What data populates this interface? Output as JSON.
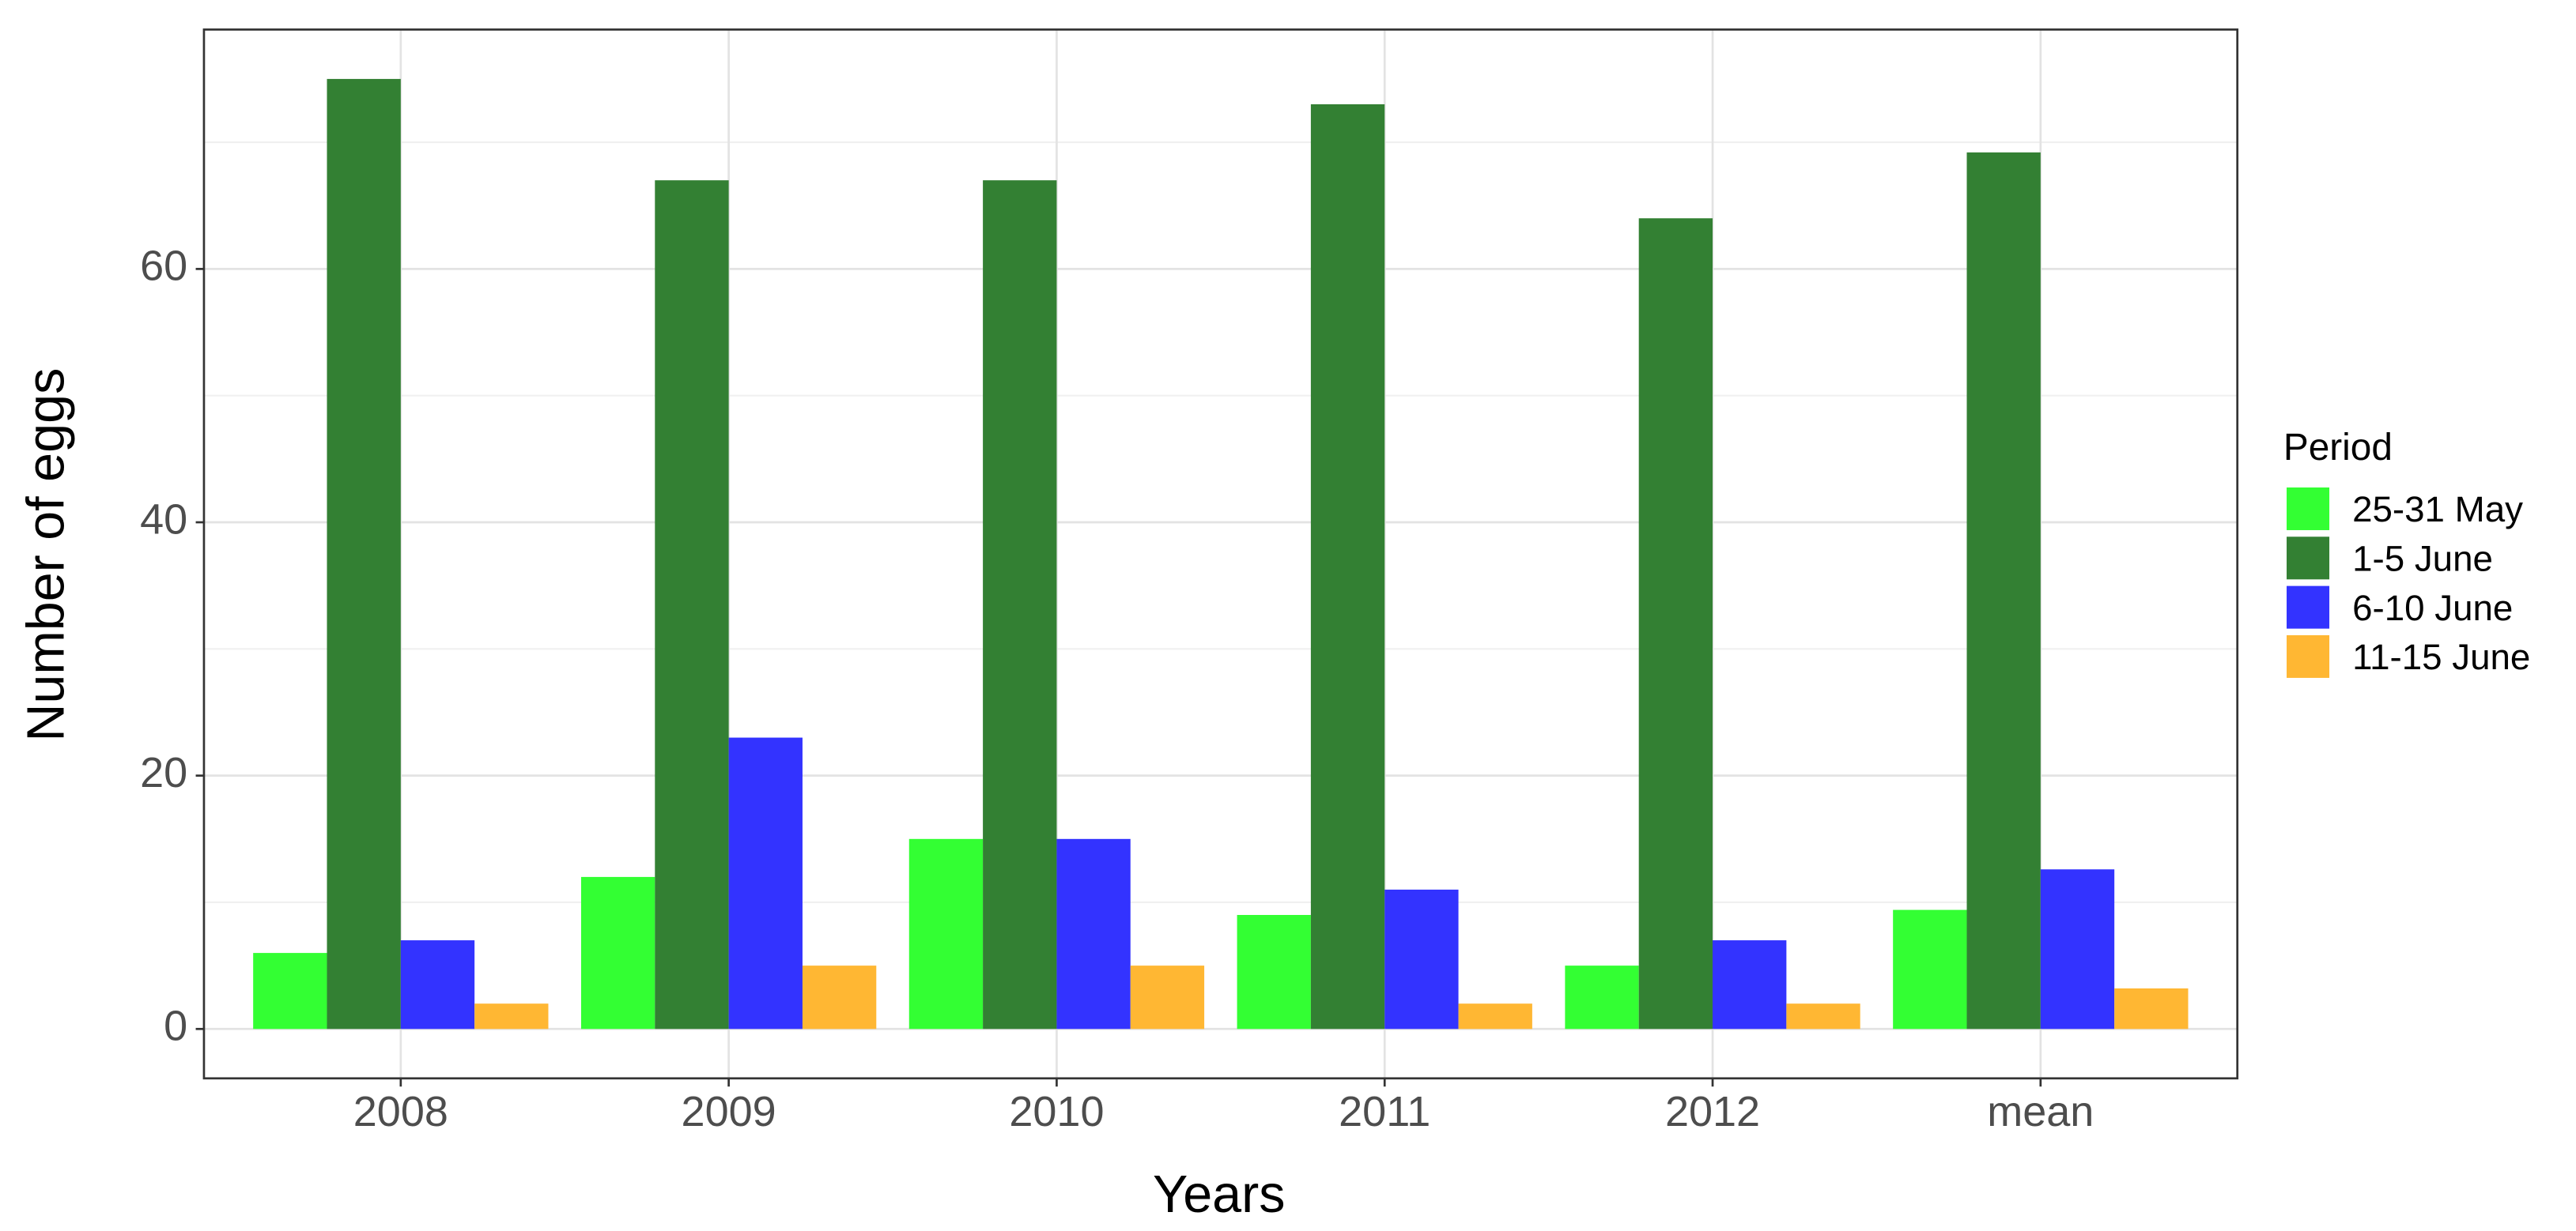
{
  "chart_data": {
    "type": "bar",
    "x_label": "Years",
    "y_label": "Number of eggs",
    "legend_title": "Period",
    "categories": [
      "2008",
      "2009",
      "2010",
      "2011",
      "2012",
      "mean"
    ],
    "series": [
      {
        "name": "25-31 May",
        "color": "#33ff33",
        "values": [
          6,
          12,
          15,
          9,
          5,
          9.4
        ]
      },
      {
        "name": "1-5 June",
        "color": "#338033",
        "values": [
          75,
          67,
          67,
          73,
          64,
          69.2
        ]
      },
      {
        "name": "6-10 June",
        "color": "#3333ff",
        "values": [
          7,
          23,
          15,
          11,
          7,
          12.6
        ]
      },
      {
        "name": "11-15 June",
        "color": "#ffb733",
        "values": [
          2,
          5,
          5,
          2,
          2,
          3.2
        ]
      }
    ],
    "ylim": [
      -3.9,
      78.9
    ],
    "yticks": [
      0,
      20,
      40,
      60
    ],
    "minor_yticks": [
      10,
      30,
      50,
      70
    ],
    "grid": true,
    "legend": "right"
  }
}
